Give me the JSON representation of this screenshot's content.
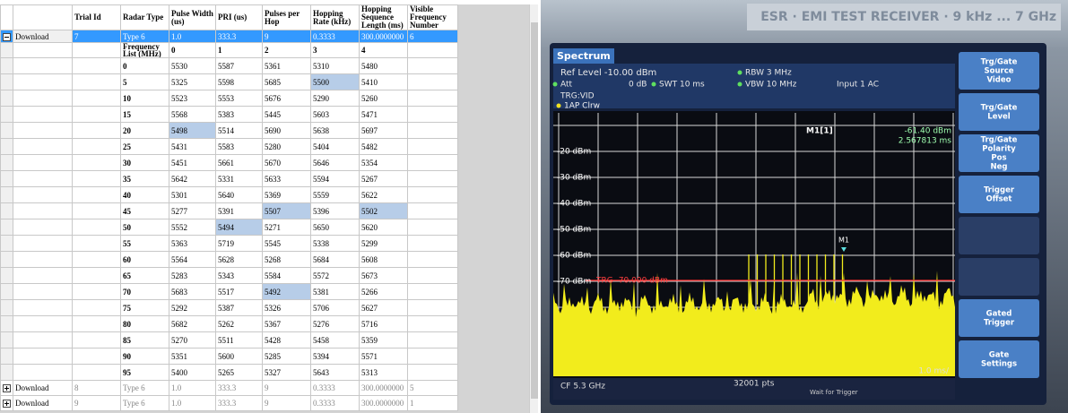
{
  "table": {
    "columns": [
      "Trial Id",
      "Radar Type",
      "Pulse Width (us)",
      "PRI (us)",
      "Pulses per Hop",
      "Hopping Rate (kHz)",
      "Hopping Sequence Length (ms)",
      "Visible Frequency Number"
    ],
    "trials": [
      {
        "action": "Download",
        "cells": [
          "7",
          "Type 6",
          "1.0",
          "333.3",
          "9",
          "0.3333",
          "300.0000000",
          "6"
        ],
        "expanded": true,
        "selected": true
      },
      {
        "action": "Download",
        "cells": [
          "8",
          "Type 6",
          "1.0",
          "333.3",
          "9",
          "0.3333",
          "300.0000000",
          "5"
        ],
        "expanded": false,
        "selected": false
      },
      {
        "action": "Download",
        "cells": [
          "9",
          "Type 6",
          "1.0",
          "333.3",
          "9",
          "0.3333",
          "300.0000000",
          "1"
        ],
        "expanded": false,
        "selected": false
      }
    ],
    "frequency_list": {
      "header": "Frequency List (MHz)",
      "columns": [
        "0",
        "1",
        "2",
        "3",
        "4"
      ],
      "rows": [
        {
          "label": "0",
          "values": [
            "5530",
            "5587",
            "5361",
            "5310",
            "5480"
          ]
        },
        {
          "label": "5",
          "values": [
            "5325",
            "5598",
            "5685",
            "5500",
            "5410"
          ]
        },
        {
          "label": "10",
          "values": [
            "5523",
            "5553",
            "5676",
            "5290",
            "5260"
          ]
        },
        {
          "label": "15",
          "values": [
            "5568",
            "5383",
            "5445",
            "5603",
            "5471"
          ]
        },
        {
          "label": "20",
          "values": [
            "5498",
            "5514",
            "5690",
            "5638",
            "5697"
          ]
        },
        {
          "label": "25",
          "values": [
            "5431",
            "5583",
            "5280",
            "5404",
            "5482"
          ]
        },
        {
          "label": "30",
          "values": [
            "5451",
            "5661",
            "5670",
            "5646",
            "5354"
          ]
        },
        {
          "label": "35",
          "values": [
            "5642",
            "5331",
            "5633",
            "5594",
            "5267"
          ]
        },
        {
          "label": "40",
          "values": [
            "5301",
            "5640",
            "5369",
            "5559",
            "5622"
          ]
        },
        {
          "label": "45",
          "values": [
            "5277",
            "5391",
            "5507",
            "5396",
            "5502"
          ]
        },
        {
          "label": "50",
          "values": [
            "5552",
            "5494",
            "5271",
            "5650",
            "5620"
          ]
        },
        {
          "label": "55",
          "values": [
            "5363",
            "5719",
            "5545",
            "5338",
            "5299"
          ]
        },
        {
          "label": "60",
          "values": [
            "5564",
            "5628",
            "5268",
            "5684",
            "5608"
          ]
        },
        {
          "label": "65",
          "values": [
            "5283",
            "5343",
            "5584",
            "5572",
            "5673"
          ]
        },
        {
          "label": "70",
          "values": [
            "5683",
            "5517",
            "5492",
            "5381",
            "5266"
          ]
        },
        {
          "label": "75",
          "values": [
            "5292",
            "5387",
            "5326",
            "5706",
            "5627"
          ]
        },
        {
          "label": "80",
          "values": [
            "5682",
            "5262",
            "5367",
            "5276",
            "5716"
          ]
        },
        {
          "label": "85",
          "values": [
            "5270",
            "5511",
            "5428",
            "5458",
            "5359"
          ]
        },
        {
          "label": "90",
          "values": [
            "5351",
            "5600",
            "5285",
            "5394",
            "5571"
          ]
        },
        {
          "label": "95",
          "values": [
            "5400",
            "5265",
            "5327",
            "5643",
            "5313"
          ]
        }
      ],
      "highlighted": [
        [
          1,
          3
        ],
        [
          4,
          0
        ],
        [
          9,
          2
        ],
        [
          9,
          4
        ],
        [
          10,
          1
        ],
        [
          14,
          2
        ]
      ]
    }
  },
  "instrument": {
    "brand": "ESR · EMI TEST RECEIVER · 9 kHz ... 7 GHz",
    "tab": "Spectrum",
    "ref_level": "Ref Level -10.00 dBm",
    "att": "Att",
    "att_value": "0 dB",
    "swt": "SWT 10 ms",
    "rbw": "RBW 3 MHz",
    "vbw": "VBW 10 MHz",
    "input": "Input 1 AC",
    "trigger_source": "TRG:VID",
    "trace": "1AP Clrw",
    "marker_title": "M1[1]",
    "marker_level": "-61.40 dBm",
    "marker_time": "2.567813 ms",
    "level_labels": [
      "-20 dBm",
      "-30 dBm",
      "-40 dBm",
      "-50 dBm",
      "-60 dBm",
      "-70 dBm"
    ],
    "trigger_level": "TRG -70.000 dBm",
    "marker": "M1",
    "center": "CF 5.3 GHz",
    "points": "32001 pts",
    "sweep_scale": "1.0 ms/",
    "status": "Wait for Trigger",
    "softkeys": [
      [
        "Trg/Gate",
        "Source",
        "Video"
      ],
      [
        "Trg/Gate",
        "Level"
      ],
      [
        "Trg/Gate",
        "Polarity",
        "Pos",
        "Neg"
      ],
      [
        "Trigger",
        "Offset"
      ],
      [
        "Gated",
        "Trigger"
      ],
      [
        "Gate",
        "Settings"
      ]
    ]
  }
}
